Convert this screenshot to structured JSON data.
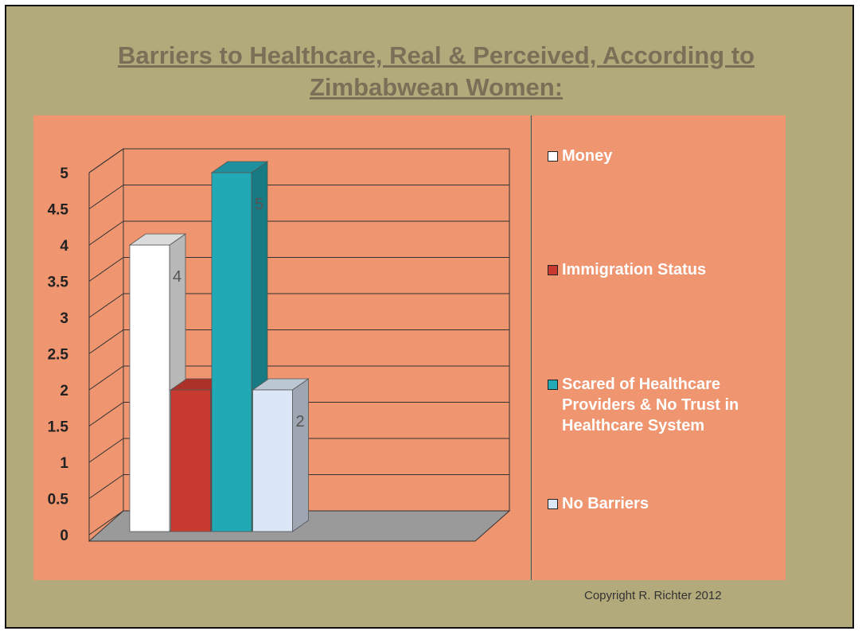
{
  "chart_data": {
    "type": "bar3d",
    "title": "Barriers to Healthcare, Real & Perceived, According to Zimbabwean Women:",
    "series": [
      {
        "name": "Money",
        "color": "#ffffff",
        "values": [
          4
        ]
      },
      {
        "name": "Immigration Status",
        "color": "#c83a30",
        "values": [
          2
        ]
      },
      {
        "name": "Scared of Healthcare Providers & No Trust in Healthcare System",
        "color": "#22a9b6",
        "values": [
          5
        ]
      },
      {
        "name": "No Barriers",
        "color": "#dbe7f7",
        "values": [
          2
        ]
      }
    ],
    "ylim": [
      0,
      5
    ],
    "yticks": [
      0,
      0.5,
      1,
      1.5,
      2,
      2.5,
      3,
      3.5,
      4,
      4.5,
      5
    ],
    "grid": true,
    "copyright": "Copyright R. Richter 2012"
  }
}
